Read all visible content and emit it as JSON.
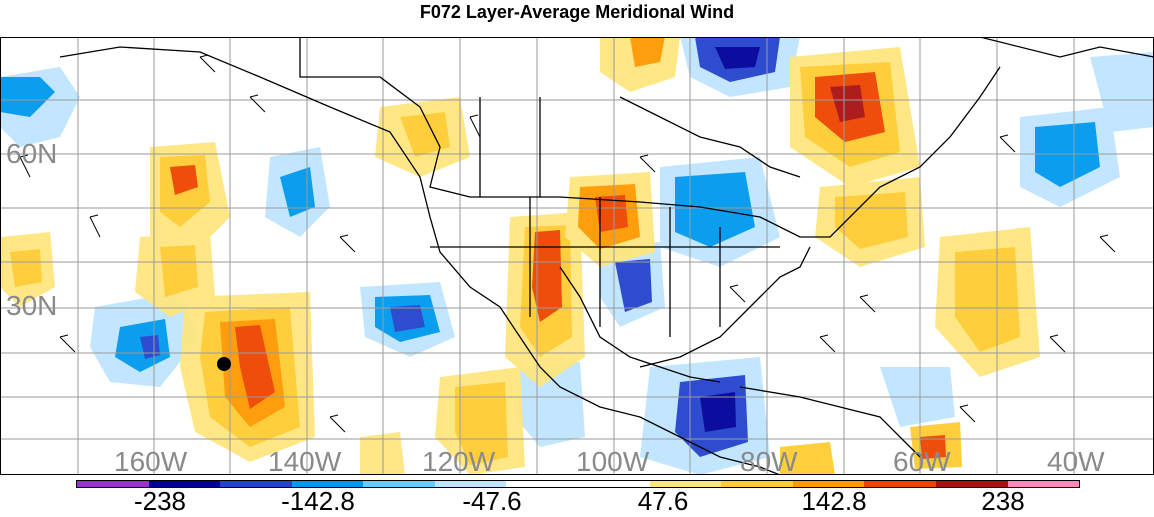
{
  "title": "F072 Layer-Average Meridional Wind",
  "latitude_labels": [
    "60N",
    "30N"
  ],
  "longitude_labels": [
    "160W",
    "140W",
    "120W",
    "100W",
    "80W",
    "60W",
    "40W"
  ],
  "colorbar": {
    "colors": [
      "#9933cc",
      "#000099",
      "#2244cc",
      "#0099ee",
      "#66ccff",
      "#bfe5ff",
      "#ffffff",
      "#ffffff",
      "#ffe680",
      "#ffcc33",
      "#ff9900",
      "#ee4400",
      "#aa1111",
      "#ff88bb"
    ],
    "labels": [
      "-238",
      "-142.8",
      "-47.6",
      "47.6",
      "142.8",
      "238"
    ]
  },
  "marker": {
    "color": "#000000"
  }
}
